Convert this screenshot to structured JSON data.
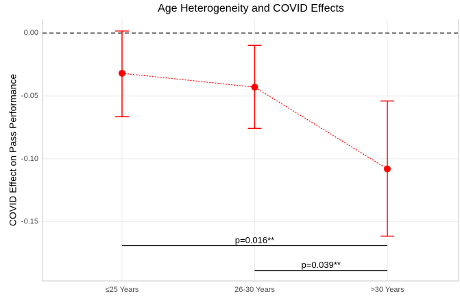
{
  "chart_data": {
    "type": "errorbar",
    "title": "Age Heterogeneity and COVID Effects",
    "y_label": "COVID Effect on Pass Performance",
    "categories": [
      "≤25 Years",
      "26-30 Years",
      ">30 Years"
    ],
    "values": [
      -0.032,
      -0.043,
      -0.108
    ],
    "lower": [
      -0.0665,
      -0.0758,
      -0.1614
    ],
    "upper": [
      0.0016,
      -0.0098,
      -0.054
    ],
    "color": "#ff0000",
    "ylim": [
      -0.197,
      0.011
    ],
    "yticks": [
      {
        "value": 0,
        "label": "0.00"
      },
      {
        "value": -0.05,
        "label": "-0.05"
      },
      {
        "value": -0.1,
        "label": "-0.10"
      },
      {
        "value": -0.15,
        "label": "-0.15"
      }
    ],
    "hline": 0,
    "grid": true,
    "brackets": [
      {
        "from": 0,
        "to": 2,
        "y": -0.169,
        "label": "p=0.016**"
      },
      {
        "from": 1,
        "to": 2,
        "y": -0.1887,
        "label": "p=0.039**"
      }
    ]
  }
}
